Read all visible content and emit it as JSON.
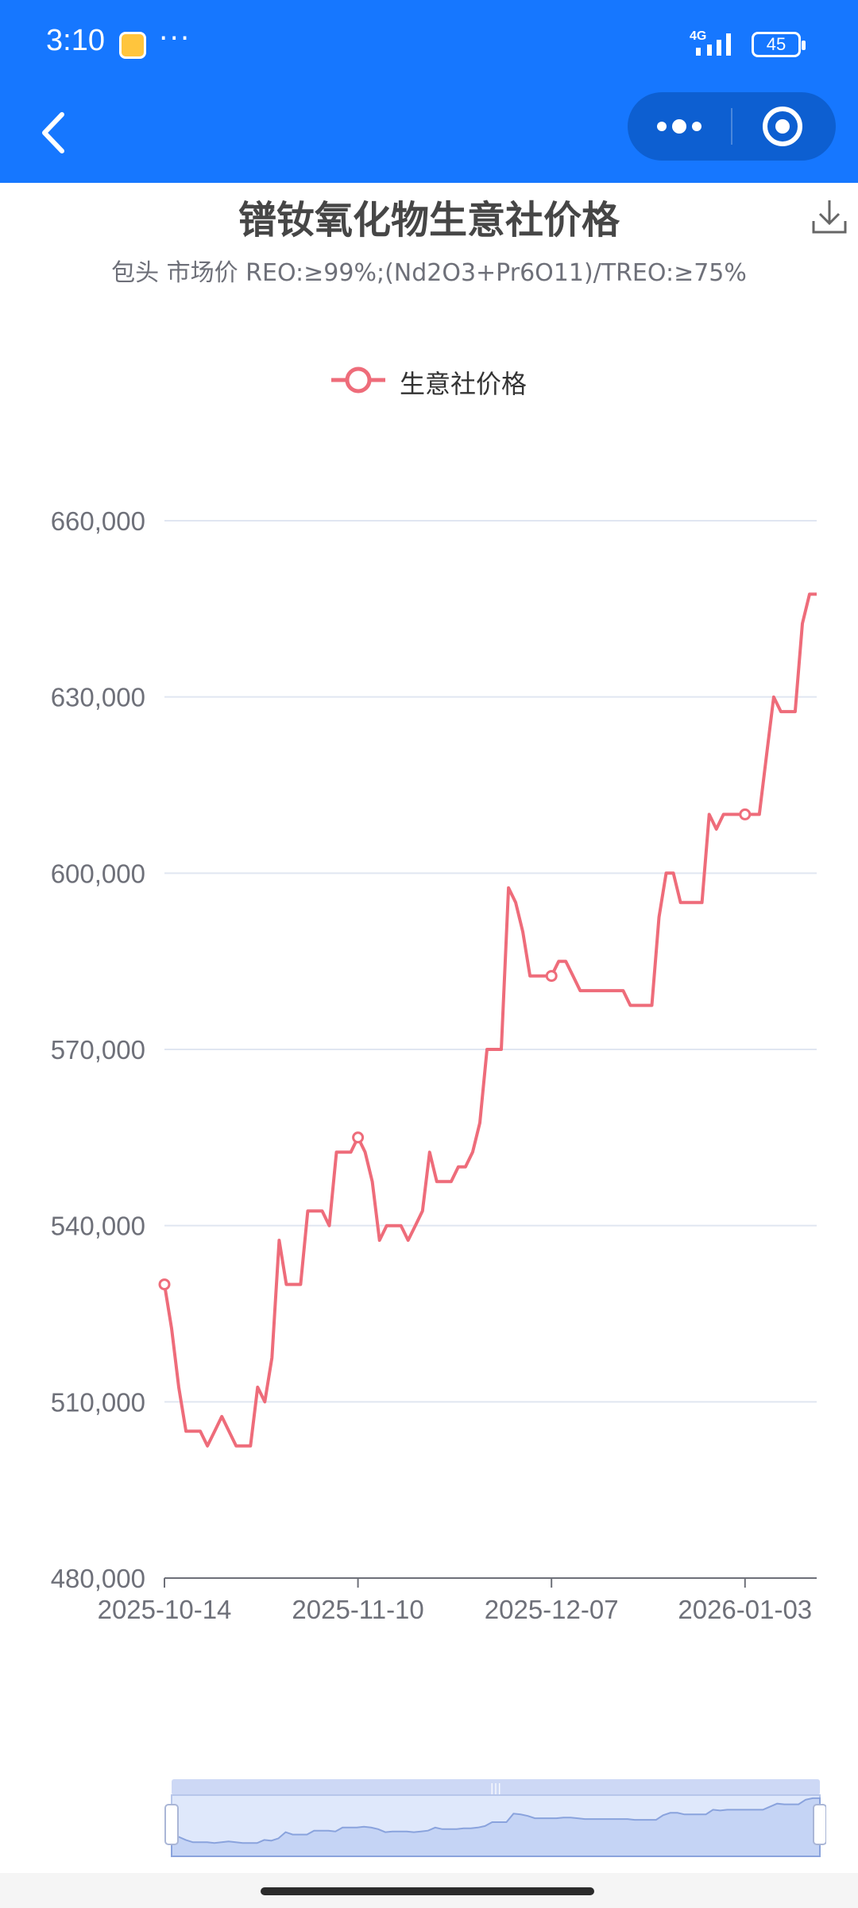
{
  "status_bar": {
    "time": "3:10",
    "dots": "···",
    "network": "4G",
    "battery": "45"
  },
  "colors": {
    "header": "#1677ff",
    "series": "#ee6c7a",
    "grid": "#e0e6f1",
    "axis_text": "#6e7079"
  },
  "nav": {
    "back_icon": "chevron-left-icon",
    "menu_icon": "more-dots-icon",
    "close_icon": "target-circle-icon"
  },
  "chart_data": {
    "type": "line",
    "title": "镨钕氧化物生意社价格",
    "subtitle": "包头 市场价 REO:≥99%;(Nd2O3+Pr6O11)/TREO:≥75%",
    "legend": {
      "position": "top-center",
      "entries": [
        "生意社价格"
      ]
    },
    "xlabel": "",
    "ylabel": "",
    "ylim": [
      480000,
      660000
    ],
    "y_ticks": [
      "480,000",
      "510,000",
      "540,000",
      "570,000",
      "600,000",
      "630,000",
      "660,000"
    ],
    "x_ticks": [
      "2025-10-14",
      "2025-11-10",
      "2025-12-07",
      "2026-01-03"
    ],
    "grid": true,
    "series": [
      {
        "name": "生意社价格",
        "values": [
          530000,
          522500,
          512500,
          505000,
          505000,
          505000,
          502500,
          505000,
          507500,
          505000,
          502500,
          502500,
          502500,
          512500,
          510000,
          517500,
          537500,
          530000,
          530000,
          530000,
          542500,
          542500,
          542500,
          540000,
          552500,
          552500,
          552500,
          555000,
          552500,
          547500,
          537500,
          540000,
          540000,
          540000,
          537500,
          540000,
          542500,
          552500,
          547500,
          547500,
          547500,
          550000,
          550000,
          552500,
          557500,
          570000,
          570000,
          570000,
          597500,
          595000,
          590000,
          582500,
          582500,
          582500,
          582500,
          585000,
          585000,
          582500,
          580000,
          580000,
          580000,
          580000,
          580000,
          580000,
          580000,
          577500,
          577500,
          577500,
          577500,
          592500,
          600000,
          600000,
          595000,
          595000,
          595000,
          595000,
          610000,
          607500,
          610000,
          610000,
          610000,
          610000,
          610000,
          610000,
          620000,
          630000,
          627500,
          627500,
          627500,
          642500,
          647500,
          647500
        ]
      }
    ]
  }
}
